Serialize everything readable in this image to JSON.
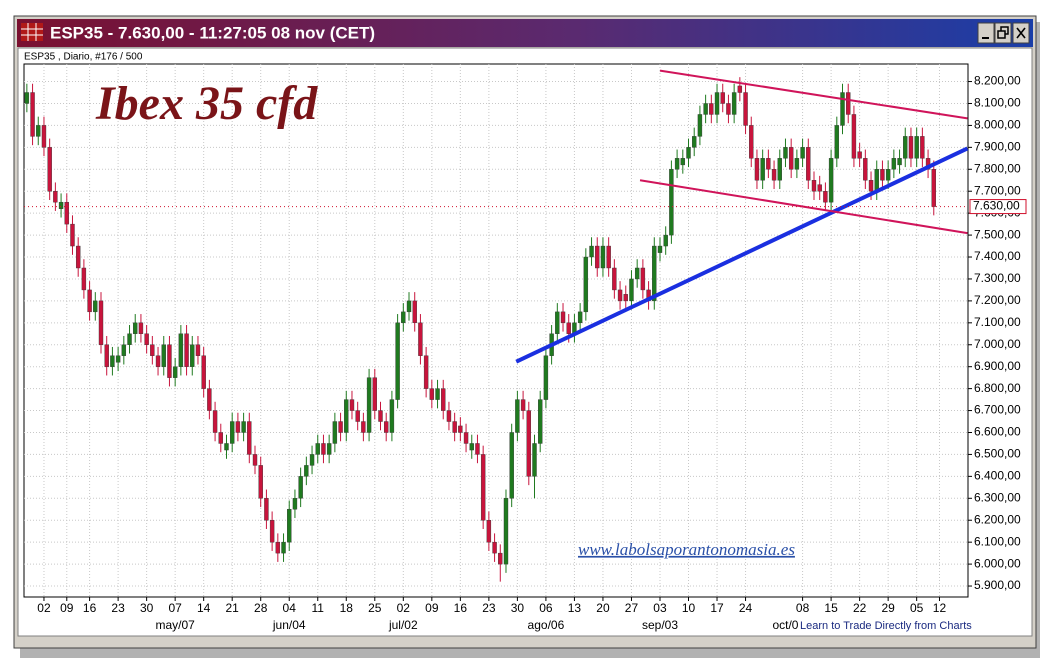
{
  "chart_data": {
    "type": "candlestick",
    "title": "ESP35 - 7.630,00 - 11:27:05  08 nov (CET)",
    "subtitle": "ESP35 , Diario, #176 / 500",
    "up_color": "#1f7a1f",
    "down_color": "#c8143c",
    "grid": true,
    "xlim": [
      -0.5,
      165
    ],
    "ylim": [
      5850,
      8280
    ],
    "yticks": [
      {
        "value": 5900,
        "label": "5.900,00"
      },
      {
        "value": 6000,
        "label": "6.000,00"
      },
      {
        "value": 6100,
        "label": "6.100,00"
      },
      {
        "value": 6200,
        "label": "6.200,00"
      },
      {
        "value": 6300,
        "label": "6.300,00"
      },
      {
        "value": 6400,
        "label": "6.400,00"
      },
      {
        "value": 6500,
        "label": "6.500,00"
      },
      {
        "value": 6600,
        "label": "6.600,00"
      },
      {
        "value": 6700,
        "label": "6.700,00"
      },
      {
        "value": 6800,
        "label": "6.800,00"
      },
      {
        "value": 6900,
        "label": "6.900,00"
      },
      {
        "value": 7000,
        "label": "7.000,00"
      },
      {
        "value": 7100,
        "label": "7.100,00"
      },
      {
        "value": 7200,
        "label": "7.200,00"
      },
      {
        "value": 7300,
        "label": "7.300,00"
      },
      {
        "value": 7400,
        "label": "7.400,00"
      },
      {
        "value": 7500,
        "label": "7.500,00"
      },
      {
        "value": 7600,
        "label": "7.600,00"
      },
      {
        "value": 7700,
        "label": "7.700,00"
      },
      {
        "value": 7800,
        "label": "7.800,00"
      },
      {
        "value": 7900,
        "label": "7.900,00"
      },
      {
        "value": 8000,
        "label": "8.000,00"
      },
      {
        "value": 8100,
        "label": "8.100,00"
      },
      {
        "value": 8200,
        "label": "8.200,00"
      }
    ],
    "xticks": [
      {
        "value": 3,
        "label": "02"
      },
      {
        "value": 7,
        "label": "09"
      },
      {
        "value": 11,
        "label": "16"
      },
      {
        "value": 16,
        "label": "23"
      },
      {
        "value": 21,
        "label": "30"
      },
      {
        "value": 26,
        "label": "07"
      },
      {
        "value": 31,
        "label": "14"
      },
      {
        "value": 36,
        "label": "21"
      },
      {
        "value": 41,
        "label": "28"
      },
      {
        "value": 46,
        "label": "04"
      },
      {
        "value": 51,
        "label": "11"
      },
      {
        "value": 56,
        "label": "18"
      },
      {
        "value": 61,
        "label": "25"
      },
      {
        "value": 66,
        "label": "02"
      },
      {
        "value": 71,
        "label": "09"
      },
      {
        "value": 76,
        "label": "16"
      },
      {
        "value": 81,
        "label": "23"
      },
      {
        "value": 86,
        "label": "30"
      },
      {
        "value": 91,
        "label": "06"
      },
      {
        "value": 96,
        "label": "13"
      },
      {
        "value": 101,
        "label": "20"
      },
      {
        "value": 106,
        "label": "27"
      },
      {
        "value": 111,
        "label": "03"
      },
      {
        "value": 116,
        "label": "10"
      },
      {
        "value": 121,
        "label": "17"
      },
      {
        "value": 126,
        "label": "24"
      },
      {
        "value": 136,
        "label": "08"
      },
      {
        "value": 141,
        "label": "15"
      },
      {
        "value": 146,
        "label": "22"
      },
      {
        "value": 151,
        "label": "29"
      },
      {
        "value": 156,
        "label": "05"
      },
      {
        "value": 160,
        "label": "12"
      }
    ],
    "month_labels": [
      {
        "value": 26,
        "label": "may/07"
      },
      {
        "value": 46,
        "label": "jun/04"
      },
      {
        "value": 66,
        "label": "jul/02"
      },
      {
        "value": 91,
        "label": "ago/06"
      },
      {
        "value": 111,
        "label": "sep/03"
      },
      {
        "value": 133,
        "label": "oct/0"
      }
    ],
    "ohlc": [
      [
        8100,
        8190,
        8060,
        8150
      ],
      [
        8150,
        8190,
        7910,
        7950
      ],
      [
        7950,
        8040,
        7910,
        8000
      ],
      [
        8000,
        8040,
        7860,
        7900
      ],
      [
        7900,
        7940,
        7660,
        7700
      ],
      [
        7700,
        7740,
        7610,
        7650
      ],
      [
        7620,
        7690,
        7580,
        7650
      ],
      [
        7650,
        7690,
        7510,
        7550
      ],
      [
        7550,
        7590,
        7410,
        7450
      ],
      [
        7450,
        7490,
        7310,
        7350
      ],
      [
        7350,
        7390,
        7210,
        7250
      ],
      [
        7250,
        7290,
        7110,
        7150
      ],
      [
        7150,
        7240,
        7110,
        7200
      ],
      [
        7200,
        7240,
        6960,
        7000
      ],
      [
        7000,
        7040,
        6860,
        6900
      ],
      [
        6900,
        6990,
        6860,
        6950
      ],
      [
        6920,
        6990,
        6880,
        6950
      ],
      [
        6950,
        7040,
        6910,
        7000
      ],
      [
        7000,
        7090,
        6960,
        7050
      ],
      [
        7050,
        7140,
        7010,
        7100
      ],
      [
        7100,
        7140,
        7010,
        7050
      ],
      [
        7050,
        7090,
        6960,
        7000
      ],
      [
        7000,
        7040,
        6910,
        6950
      ],
      [
        6950,
        6990,
        6860,
        6900
      ],
      [
        6900,
        7040,
        6860,
        7000
      ],
      [
        7000,
        7040,
        6810,
        6850
      ],
      [
        6850,
        6940,
        6810,
        6900
      ],
      [
        6900,
        7090,
        6860,
        7050
      ],
      [
        7050,
        7090,
        6860,
        6900
      ],
      [
        6900,
        7040,
        6860,
        7000
      ],
      [
        7000,
        7040,
        6910,
        6950
      ],
      [
        6950,
        6990,
        6760,
        6800
      ],
      [
        6800,
        6840,
        6660,
        6700
      ],
      [
        6700,
        6740,
        6560,
        6600
      ],
      [
        6600,
        6640,
        6510,
        6550
      ],
      [
        6520,
        6590,
        6480,
        6550
      ],
      [
        6550,
        6690,
        6510,
        6650
      ],
      [
        6650,
        6690,
        6560,
        6600
      ],
      [
        6600,
        6690,
        6560,
        6650
      ],
      [
        6650,
        6690,
        6460,
        6500
      ],
      [
        6500,
        6540,
        6410,
        6450
      ],
      [
        6450,
        6490,
        6260,
        6300
      ],
      [
        6300,
        6340,
        6160,
        6200
      ],
      [
        6200,
        6240,
        6060,
        6100
      ],
      [
        6100,
        6140,
        6010,
        6050
      ],
      [
        6050,
        6140,
        6010,
        6100
      ],
      [
        6100,
        6290,
        6060,
        6250
      ],
      [
        6250,
        6340,
        6210,
        6300
      ],
      [
        6300,
        6440,
        6260,
        6400
      ],
      [
        6400,
        6490,
        6360,
        6450
      ],
      [
        6450,
        6540,
        6410,
        6500
      ],
      [
        6500,
        6590,
        6460,
        6550
      ],
      [
        6550,
        6590,
        6460,
        6500
      ],
      [
        6500,
        6590,
        6460,
        6550
      ],
      [
        6550,
        6690,
        6510,
        6650
      ],
      [
        6650,
        6690,
        6560,
        6600
      ],
      [
        6600,
        6790,
        6560,
        6750
      ],
      [
        6750,
        6790,
        6660,
        6700
      ],
      [
        6700,
        6740,
        6610,
        6650
      ],
      [
        6650,
        6690,
        6560,
        6600
      ],
      [
        6600,
        6890,
        6560,
        6850
      ],
      [
        6850,
        6890,
        6660,
        6700
      ],
      [
        6700,
        6740,
        6610,
        6650
      ],
      [
        6650,
        6690,
        6560,
        6600
      ],
      [
        6600,
        6790,
        6560,
        6750
      ],
      [
        6750,
        7140,
        6710,
        7100
      ],
      [
        7100,
        7190,
        7060,
        7150
      ],
      [
        7150,
        7240,
        7110,
        7200
      ],
      [
        7200,
        7240,
        7060,
        7100
      ],
      [
        7100,
        7140,
        6910,
        6950
      ],
      [
        6950,
        6990,
        6760,
        6800
      ],
      [
        6800,
        6840,
        6710,
        6750
      ],
      [
        6750,
        6840,
        6710,
        6800
      ],
      [
        6800,
        6840,
        6660,
        6700
      ],
      [
        6700,
        6740,
        6610,
        6650
      ],
      [
        6650,
        6690,
        6560,
        6600
      ],
      [
        6630,
        6670,
        6560,
        6600
      ],
      [
        6600,
        6640,
        6510,
        6550
      ],
      [
        6520,
        6590,
        6480,
        6550
      ],
      [
        6550,
        6590,
        6460,
        6500
      ],
      [
        6500,
        6540,
        6160,
        6200
      ],
      [
        6200,
        6240,
        6060,
        6100
      ],
      [
        6100,
        6140,
        6010,
        6050
      ],
      [
        6050,
        6090,
        5920,
        6000
      ],
      [
        6000,
        6340,
        5960,
        6300
      ],
      [
        6300,
        6640,
        6260,
        6600
      ],
      [
        6600,
        6790,
        6560,
        6750
      ],
      [
        6750,
        6790,
        6660,
        6700
      ],
      [
        6700,
        6740,
        6360,
        6400
      ],
      [
        6400,
        6590,
        6300,
        6550
      ],
      [
        6550,
        6790,
        6510,
        6750
      ],
      [
        6750,
        6990,
        6710,
        6950
      ],
      [
        6950,
        7090,
        6910,
        7050
      ],
      [
        7050,
        7190,
        7010,
        7150
      ],
      [
        7150,
        7190,
        7060,
        7100
      ],
      [
        7100,
        7140,
        7010,
        7050
      ],
      [
        7050,
        7140,
        7010,
        7100
      ],
      [
        7100,
        7190,
        7060,
        7150
      ],
      [
        7150,
        7440,
        7110,
        7400
      ],
      [
        7400,
        7490,
        7360,
        7450
      ],
      [
        7450,
        7490,
        7310,
        7350
      ],
      [
        7350,
        7490,
        7310,
        7450
      ],
      [
        7450,
        7490,
        7310,
        7350
      ],
      [
        7350,
        7390,
        7210,
        7250
      ],
      [
        7250,
        7290,
        7160,
        7200
      ],
      [
        7230,
        7270,
        7160,
        7200
      ],
      [
        7200,
        7340,
        7160,
        7300
      ],
      [
        7300,
        7390,
        7260,
        7350
      ],
      [
        7350,
        7390,
        7210,
        7250
      ],
      [
        7250,
        7290,
        7160,
        7200
      ],
      [
        7200,
        7490,
        7160,
        7450
      ],
      [
        7420,
        7490,
        7380,
        7450
      ],
      [
        7450,
        7540,
        7410,
        7500
      ],
      [
        7500,
        7840,
        7460,
        7800
      ],
      [
        7800,
        7890,
        7760,
        7850
      ],
      [
        7820,
        7890,
        7780,
        7850
      ],
      [
        7850,
        7940,
        7810,
        7900
      ],
      [
        7900,
        7990,
        7860,
        7950
      ],
      [
        7950,
        8090,
        7910,
        8050
      ],
      [
        8050,
        8140,
        8010,
        8100
      ],
      [
        8100,
        8140,
        8010,
        8050
      ],
      [
        8050,
        8190,
        8010,
        8150
      ],
      [
        8150,
        8190,
        8060,
        8100
      ],
      [
        8100,
        8140,
        8010,
        8050
      ],
      [
        8050,
        8190,
        8010,
        8150
      ],
      [
        8180,
        8220,
        8110,
        8150
      ],
      [
        8150,
        8190,
        7960,
        8000
      ],
      [
        8000,
        8040,
        7810,
        7850
      ],
      [
        7850,
        7890,
        7710,
        7750
      ],
      [
        7750,
        7890,
        7710,
        7850
      ],
      [
        7850,
        7890,
        7760,
        7800
      ],
      [
        7800,
        7840,
        7710,
        7750
      ],
      [
        7750,
        7890,
        7710,
        7850
      ],
      [
        7850,
        7940,
        7810,
        7900
      ],
      [
        7900,
        7940,
        7760,
        7800
      ],
      [
        7800,
        7890,
        7760,
        7850
      ],
      [
        7850,
        7940,
        7810,
        7900
      ],
      [
        7900,
        7940,
        7710,
        7750
      ],
      [
        7750,
        7790,
        7660,
        7700
      ],
      [
        7730,
        7770,
        7660,
        7700
      ],
      [
        7700,
        7740,
        7610,
        7650
      ],
      [
        7650,
        7890,
        7610,
        7850
      ],
      [
        7850,
        8040,
        7810,
        8000
      ],
      [
        8000,
        8190,
        7960,
        8150
      ],
      [
        8150,
        8190,
        8010,
        8050
      ],
      [
        8050,
        8090,
        7810,
        7850
      ],
      [
        7880,
        7920,
        7810,
        7850
      ],
      [
        7850,
        7890,
        7710,
        7750
      ],
      [
        7750,
        7790,
        7660,
        7700
      ],
      [
        7700,
        7840,
        7660,
        7800
      ],
      [
        7800,
        7840,
        7710,
        7750
      ],
      [
        7750,
        7840,
        7710,
        7800
      ],
      [
        7800,
        7890,
        7760,
        7850
      ],
      [
        7820,
        7890,
        7780,
        7850
      ],
      [
        7850,
        7990,
        7810,
        7950
      ],
      [
        7950,
        7990,
        7810,
        7850
      ],
      [
        7850,
        7990,
        7810,
        7950
      ],
      [
        7950,
        7990,
        7810,
        7850
      ],
      [
        7850,
        7890,
        7760,
        7800
      ],
      [
        7800,
        7840,
        7590,
        7630
      ]
    ],
    "last_price": {
      "value": 7630,
      "label": "7.630,00",
      "color": "#d0102c"
    },
    "trendlines": [
      {
        "color": "#1a2fe0",
        "x": [
          85.8,
          164.9
        ],
        "y": [
          6923,
          7895
        ]
      },
      {
        "color": "#d0145a",
        "x": [
          111,
          164.9
        ],
        "y": [
          8250,
          8032
        ]
      },
      {
        "color": "#d0145a",
        "x": [
          107.5,
          164.9
        ],
        "y": [
          7750,
          7509
        ]
      }
    ],
    "annotations": {
      "watermark": "Ibex 35 cfd",
      "link": "www.labolsaporantonomasia.es",
      "promo": "Learn to Trade Directly from Charts"
    }
  }
}
